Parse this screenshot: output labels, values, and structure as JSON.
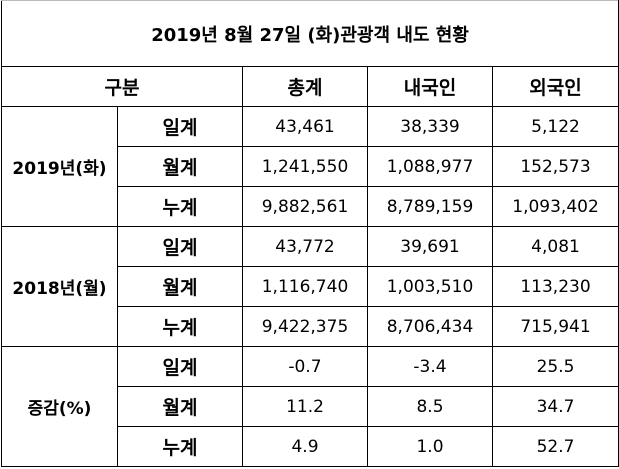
{
  "title": "2019년 8월 27일 (화)관광객 내도 현황",
  "header": {
    "category": "구분",
    "total": "총계",
    "domestic": "내국인",
    "foreign": "외국인"
  },
  "groups": [
    {
      "label": "2019년(화)",
      "rows": [
        {
          "label": "일계",
          "total": "43,461",
          "domestic": "38,339",
          "foreign": "5,122"
        },
        {
          "label": "월계",
          "total": "1,241,550",
          "domestic": "1,088,977",
          "foreign": "152,573"
        },
        {
          "label": "누계",
          "total": "9,882,561",
          "domestic": "8,789,159",
          "foreign": "1,093,402"
        }
      ]
    },
    {
      "label": "2018년(월)",
      "rows": [
        {
          "label": "일계",
          "total": "43,772",
          "domestic": "39,691",
          "foreign": "4,081"
        },
        {
          "label": "월계",
          "total": "1,116,740",
          "domestic": "1,003,510",
          "foreign": "113,230"
        },
        {
          "label": "누계",
          "total": "9,422,375",
          "domestic": "8,706,434",
          "foreign": "715,941"
        }
      ]
    },
    {
      "label": "증감(%)",
      "rows": [
        {
          "label": "일계",
          "total": "-0.7",
          "domestic": "-3.4",
          "foreign": "25.5"
        },
        {
          "label": "월계",
          "total": "11.2",
          "domestic": "8.5",
          "foreign": "34.7"
        },
        {
          "label": "누계",
          "total": "4.9",
          "domestic": "1.0",
          "foreign": "52.7"
        }
      ]
    }
  ]
}
